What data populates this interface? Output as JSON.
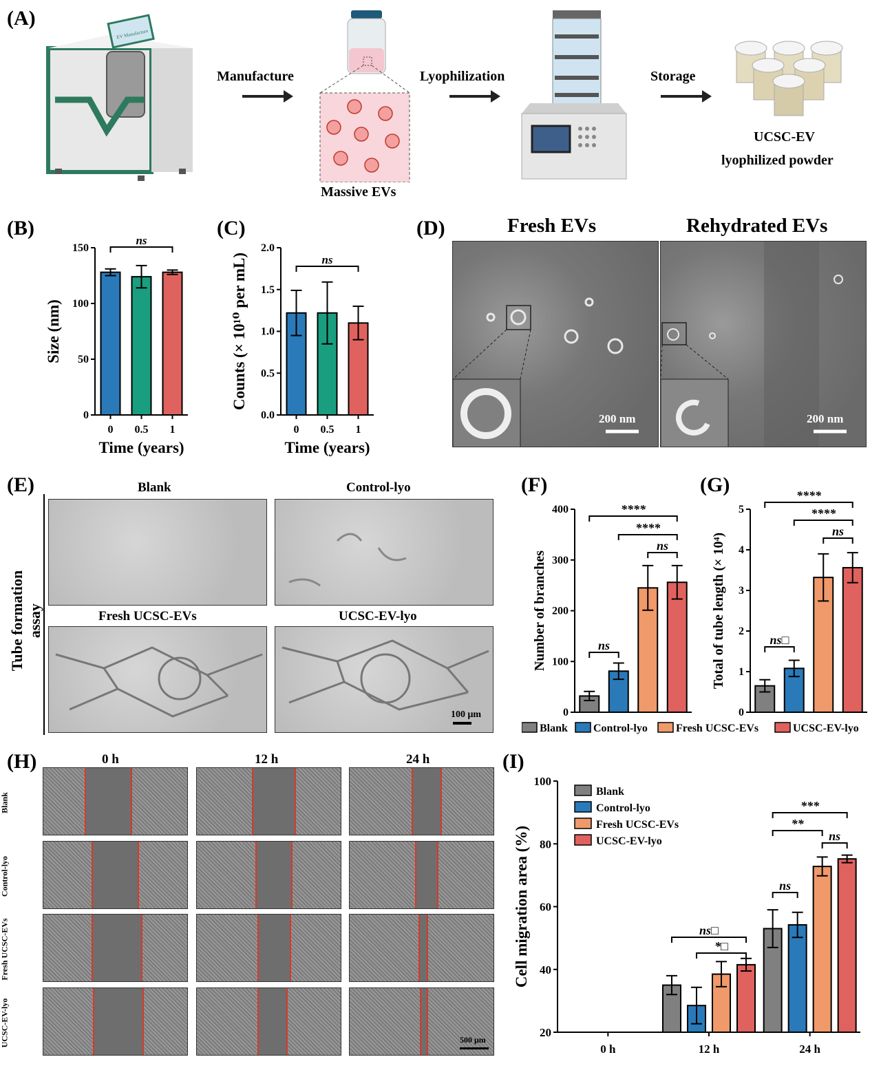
{
  "panelA": {
    "label": "(A)",
    "steps": [
      "Manufacture",
      "Lyophilization",
      "Storage"
    ],
    "massive_evs": "Massive EVs",
    "product_line1": "UCSC-EV",
    "product_line2": "lyophilized powder",
    "device_screen_text": "EV Manufacture"
  },
  "panelB": {
    "label": "(B)"
  },
  "panelC": {
    "label": "(C)"
  },
  "panelD": {
    "label": "(D)",
    "left_title": "Fresh EVs",
    "right_title": "Rehydrated EVs",
    "scale": "200 nm"
  },
  "panelE": {
    "label": "(E)",
    "side_title": "Tube formation assay",
    "titles": [
      "Blank",
      "Control-lyo",
      "Fresh UCSC-EVs",
      "UCSC-EV-lyo"
    ],
    "scale": "100 μm"
  },
  "panelF": {
    "label": "(F)"
  },
  "panelG": {
    "label": "(G)"
  },
  "panelH": {
    "label": "(H)",
    "cols": [
      "0 h",
      "12 h",
      "24 h"
    ],
    "rows": [
      "Blank",
      "Control-lyo",
      "Fresh UCSC-EVs",
      "UCSC-EV-lyo"
    ],
    "scale": "500 μm"
  },
  "panelI": {
    "label": "(I)"
  },
  "legendFG": [
    "Blank",
    "Control-lyo",
    "Fresh UCSC-EVs",
    "UCSC-EV-lyo"
  ],
  "colors": {
    "blue": "#2a7ab9",
    "green": "#1a9e80",
    "red": "#e0625e",
    "gray": "#808080",
    "orange": "#f0996a"
  },
  "chart_data": [
    {
      "id": "B",
      "type": "bar",
      "categories": [
        "0",
        "0.5",
        "1"
      ],
      "values": [
        128,
        124,
        128
      ],
      "errors": [
        3,
        10,
        2
      ],
      "xlabel": "Time (years)",
      "ylabel": "Size (nm)",
      "ylim": [
        0,
        150
      ],
      "yticks": [
        0,
        50,
        100,
        150
      ],
      "sig": [
        {
          "from": 0,
          "to": 2,
          "text": "ns"
        }
      ]
    },
    {
      "id": "C",
      "type": "bar",
      "categories": [
        "0",
        "0.5",
        "1"
      ],
      "values": [
        1.22,
        1.22,
        1.1
      ],
      "errors": [
        0.27,
        0.37,
        0.2
      ],
      "xlabel": "Time (years)",
      "ylabel": "Counts (× 10¹⁰ per mL)",
      "ylim": [
        0,
        2.0
      ],
      "yticks": [
        "0.0",
        "0.5",
        "1.0",
        "1.5",
        "2.0"
      ],
      "sig": [
        {
          "from": 0,
          "to": 2,
          "text": "ns"
        }
      ]
    },
    {
      "id": "F",
      "type": "bar",
      "categories": [
        "Blank",
        "Control-lyo",
        "Fresh UCSC-EVs",
        "UCSC-EV-lyo"
      ],
      "values": [
        32,
        81,
        245,
        256
      ],
      "errors": [
        9,
        16,
        44,
        33
      ],
      "ylabel": "Number of branches",
      "ylim": [
        0,
        400
      ],
      "yticks": [
        0,
        100,
        200,
        300,
        400
      ],
      "sig": [
        {
          "from": 0,
          "to": 3,
          "text": "****"
        },
        {
          "from": 1,
          "to": 3,
          "text": "****"
        },
        {
          "from": 2,
          "to": 3,
          "text": "ns"
        },
        {
          "from": 0,
          "to": 1,
          "text": "ns"
        }
      ]
    },
    {
      "id": "G",
      "type": "bar",
      "categories": [
        "Blank",
        "Control-lyo",
        "Fresh UCSC-EVs",
        "UCSC-EV-lyo"
      ],
      "values": [
        0.65,
        1.08,
        3.32,
        3.56
      ],
      "errors": [
        0.15,
        0.2,
        0.58,
        0.37
      ],
      "ylabel": "Total of tube length (× 10⁴)",
      "ylim": [
        0,
        5
      ],
      "yticks": [
        0,
        1,
        2,
        3,
        4,
        5
      ],
      "sig": [
        {
          "from": 0,
          "to": 3,
          "text": "****"
        },
        {
          "from": 1,
          "to": 3,
          "text": "****"
        },
        {
          "from": 2,
          "to": 3,
          "text": "ns"
        },
        {
          "from": 0,
          "to": 1,
          "text": "ns□"
        }
      ]
    },
    {
      "id": "I",
      "type": "bar",
      "categories": [
        "0 h",
        "12 h",
        "24 h"
      ],
      "series": [
        {
          "name": "Blank",
          "values": [
            null,
            35,
            53
          ],
          "errors": [
            null,
            3,
            6
          ]
        },
        {
          "name": "Control-lyo",
          "values": [
            null,
            28.5,
            54.2
          ],
          "errors": [
            null,
            5.8,
            4
          ]
        },
        {
          "name": "Fresh UCSC-EVs",
          "values": [
            null,
            38.5,
            72.8
          ],
          "errors": [
            null,
            4,
            3
          ]
        },
        {
          "name": "UCSC-EV-lyo",
          "values": [
            null,
            41.5,
            75.2
          ],
          "errors": [
            null,
            2,
            1.2
          ]
        }
      ],
      "ylabel": "Cell migration area (%)",
      "ylim": [
        20,
        100
      ],
      "yticks": [
        20,
        40,
        60,
        80,
        100
      ],
      "sig": [
        {
          "group": 1,
          "from": 0,
          "to": 3,
          "text": "ns□"
        },
        {
          "group": 1,
          "from": 1,
          "to": 3,
          "text": "*□"
        },
        {
          "group": 2,
          "from": 0,
          "to": 3,
          "text": "***"
        },
        {
          "group": 2,
          "from": 0,
          "to": 2,
          "text": "**"
        },
        {
          "group": 2,
          "from": 2,
          "to": 3,
          "text": "ns"
        },
        {
          "group": 2,
          "from": 0,
          "to": 1,
          "text": "ns"
        }
      ]
    }
  ]
}
